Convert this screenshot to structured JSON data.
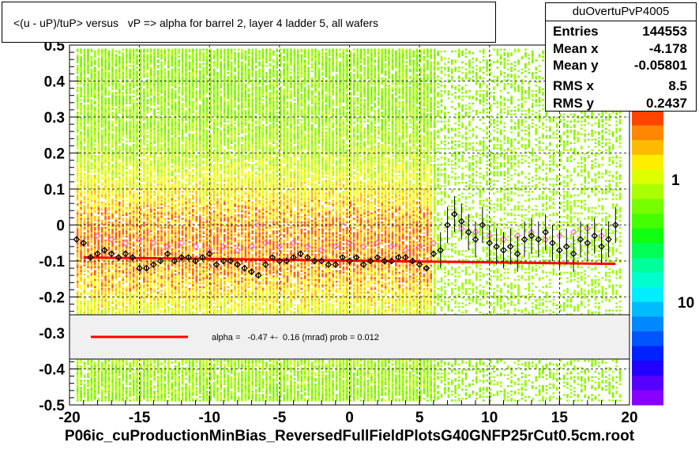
{
  "title": "<(u - uP)/tuP> versus   vP => alpha for barrel 2, layer 4 ladder 5, all wafers",
  "stats": {
    "name": "duOvertuPvP4005",
    "rows": [
      {
        "key": "Entries",
        "value": "144553"
      },
      {
        "key": "Mean x",
        "value": "-4.178"
      },
      {
        "key": "Mean y",
        "value": "-0.05801"
      },
      {
        "key": "RMS x",
        "value": "8.5"
      },
      {
        "key": "RMS y",
        "value": "0.2437"
      }
    ]
  },
  "legend": {
    "text": "alpha =   -0.47 +-  0.16 (mrad) prob = 0.012",
    "line_color": "#ff0000"
  },
  "footer": "P06ic_cuProductionMinBias_ReversedFullFieldPlotsG40GNFP25rCut0.5cm.root",
  "colors": {
    "fit": "#ff0000",
    "profile_black": "#000000",
    "profile_pink": "#ff66cc",
    "heat_low": "#7ff000",
    "heat_mid": "#ffc000",
    "heat_high": "#ff6000"
  },
  "chart_data": {
    "type": "heatmap",
    "xlim": [
      -20,
      20
    ],
    "ylim": [
      -0.5,
      0.5
    ],
    "x_ticks": [
      -20,
      -15,
      -10,
      -5,
      0,
      5,
      10,
      15,
      20
    ],
    "y_ticks": [
      -0.5,
      -0.4,
      -0.3,
      -0.2,
      -0.1,
      0,
      0.1,
      0.2,
      0.3,
      0.4,
      0.5
    ],
    "x_tick_labels": [
      "-20",
      "-15",
      "-10",
      "-5",
      "0",
      "5",
      "10",
      "15",
      "20"
    ],
    "y_tick_labels": [
      "-0.5",
      "-0.4",
      "-0.3",
      "-0.2",
      "-0.1",
      "0",
      "0.1",
      "0.2",
      "0.3",
      "0.4",
      "0.5"
    ],
    "grid": true,
    "z_scale": "log",
    "z_tick_labels": [
      "1",
      "10"
    ],
    "fit_line": {
      "x": [
        -19,
        19
      ],
      "y": [
        -0.09,
        -0.108
      ]
    },
    "profile_black": {
      "x": [
        -19.5,
        -19,
        -18.5,
        -18,
        -17.5,
        -17,
        -16.5,
        -16,
        -15.5,
        -15,
        -14.5,
        -14,
        -13.5,
        -13,
        -12.5,
        -12,
        -11.5,
        -11,
        -10.5,
        -10,
        -9.5,
        -9,
        -8.5,
        -8,
        -7.5,
        -7,
        -6.5,
        -6,
        -5.5,
        -5,
        -4.5,
        -4,
        -3.5,
        -3,
        -2.5,
        -2,
        -1.5,
        -1,
        -0.5,
        0,
        0.5,
        1,
        1.5,
        2,
        2.5,
        3,
        3.5,
        4,
        4.5,
        5,
        5.5,
        6,
        6.5,
        7,
        7.5,
        8,
        8.5,
        9,
        9.5,
        10,
        10.5,
        11,
        11.5,
        12,
        12.5,
        13,
        13.5,
        14,
        14.5,
        15,
        15.5,
        16,
        16.5,
        17,
        17.5,
        18,
        18.5,
        19
      ],
      "y": [
        -0.04,
        -0.05,
        -0.09,
        -0.08,
        -0.07,
        -0.08,
        -0.09,
        -0.08,
        -0.09,
        -0.12,
        -0.12,
        -0.11,
        -0.1,
        -0.08,
        -0.1,
        -0.09,
        -0.09,
        -0.1,
        -0.09,
        -0.08,
        -0.11,
        -0.1,
        -0.1,
        -0.11,
        -0.12,
        -0.13,
        -0.14,
        -0.11,
        -0.09,
        -0.1,
        -0.1,
        -0.09,
        -0.08,
        -0.09,
        -0.1,
        -0.1,
        -0.11,
        -0.11,
        -0.09,
        -0.1,
        -0.09,
        -0.11,
        -0.1,
        -0.09,
        -0.1,
        -0.1,
        -0.09,
        -0.09,
        -0.1,
        -0.11,
        -0.12,
        -0.08,
        -0.07,
        0,
        0.03,
        0.01,
        -0.02,
        -0.04,
        0,
        -0.05,
        -0.06,
        -0.07,
        -0.06,
        -0.08,
        -0.04,
        -0.03,
        -0.04,
        -0.02,
        -0.05,
        -0.07,
        -0.06,
        -0.08,
        -0.04,
        -0.05,
        -0.03,
        -0.06,
        -0.04,
        0
      ]
    },
    "profile_pink": {
      "x": [
        -19,
        -18,
        -17,
        -16,
        -15,
        -14,
        -13,
        -12,
        -11,
        -10,
        -9,
        -8,
        -7,
        -6.5,
        -6,
        -5,
        -4,
        -3,
        -2,
        -1,
        0,
        1,
        2,
        3,
        4,
        5,
        6,
        8,
        9,
        10,
        11,
        12,
        13,
        14,
        15,
        16,
        17,
        18
      ],
      "y": [
        -0.05,
        -0.03,
        -0.04,
        -0.05,
        -0.04,
        -0.05,
        -0.06,
        -0.05,
        -0.06,
        -0.07,
        -0.06,
        -0.07,
        -0.06,
        0,
        -0.05,
        -0.06,
        -0.05,
        -0.06,
        -0.07,
        -0.06,
        -0.05,
        -0.06,
        -0.05,
        -0.06,
        -0.07,
        -0.06,
        -0.05,
        -0.01,
        -0.02,
        -0.03,
        -0.04,
        -0.03,
        -0.02,
        -0.04,
        -0.03,
        -0.02,
        -0.01,
        -0.03
      ]
    }
  }
}
